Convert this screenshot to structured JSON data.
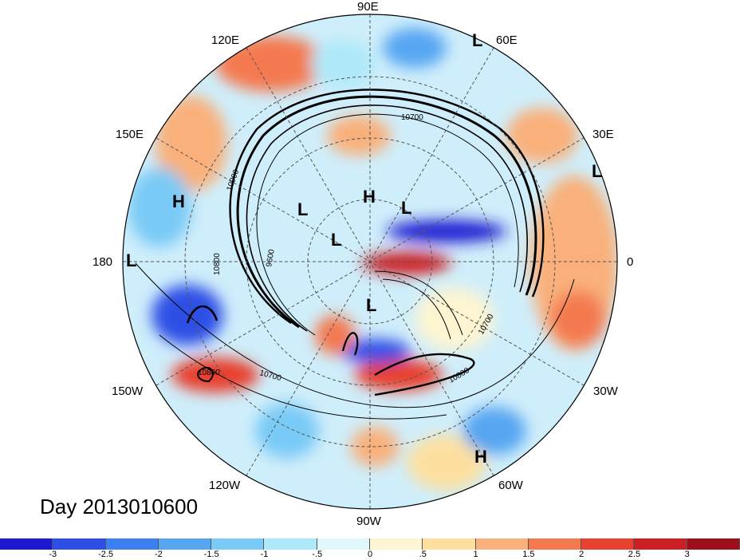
{
  "lon_labels": {
    "e90": "90E",
    "e120": "120E",
    "e60": "60E",
    "e150": "150E",
    "e30": "30E",
    "w180": "180",
    "w0": "0",
    "w150": "150W",
    "w30": "30W",
    "w120": "120W",
    "w60": "60W",
    "w90": "90W"
  },
  "pressure_centers": [
    {
      "label": "L",
      "name": "low-60e"
    },
    {
      "label": "L",
      "name": "low-30e"
    },
    {
      "label": "H",
      "name": "high-150e"
    },
    {
      "label": "L",
      "name": "low-180"
    },
    {
      "label": "L",
      "name": "low-siberia"
    },
    {
      "label": "H",
      "name": "high-pole"
    },
    {
      "label": "L",
      "name": "low-arctic-east"
    },
    {
      "label": "L",
      "name": "low-arctic"
    },
    {
      "label": "L",
      "name": "low-canada"
    },
    {
      "label": "H",
      "name": "high-atlantic"
    }
  ],
  "contour_labels": [
    "10900",
    "9600",
    "10800",
    "10700",
    "10700",
    "10800",
    "10700",
    "10800"
  ],
  "day_label": "Day 2013010600",
  "colorbar": {
    "colors": [
      "#1c1ad0",
      "#2d4fe6",
      "#3c7ff0",
      "#56a6f2",
      "#79caf6",
      "#aee9f9",
      "#e0f7fb",
      "#fdf5d2",
      "#fde0a0",
      "#f9b07a",
      "#f4794f",
      "#e8412f",
      "#cc1f24",
      "#9e0f1c"
    ],
    "ticks": [
      "-3",
      "-2.5",
      "-2",
      "-1.5",
      "-1",
      "-.5",
      "0",
      ".5",
      "1",
      "1.5",
      "2",
      "2.5",
      "3"
    ]
  }
}
